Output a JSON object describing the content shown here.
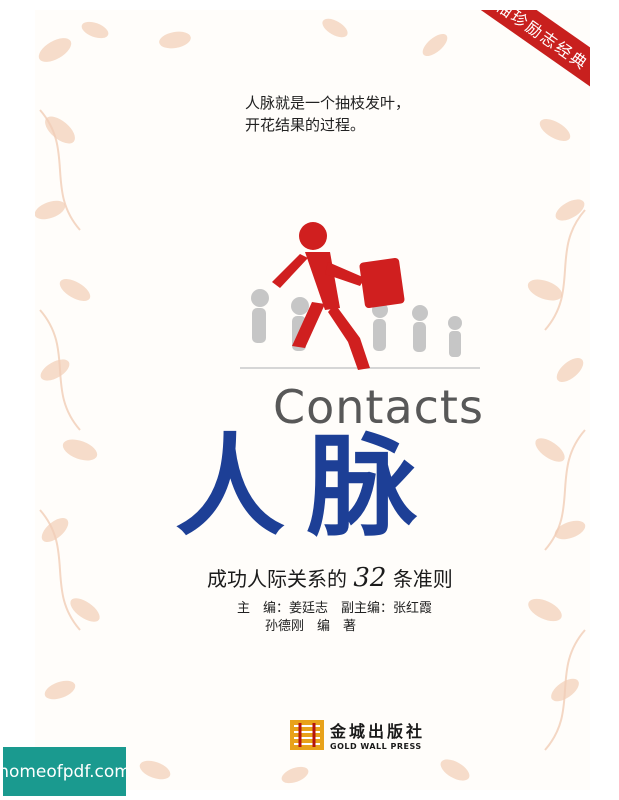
{
  "cover": {
    "ribbon_text": "袖珍励志经典",
    "slogan": [
      "人脉就是一个抽枝发叶，",
      "开花结果的过程。"
    ],
    "title_en": "Contacts",
    "title_cn": "人脉",
    "subtitle_prefix": "成功人际关系的",
    "subtitle_number": "32",
    "subtitle_suffix": "条准则",
    "editors": {
      "line1": "主　编：姜廷志　副主编：张红霞",
      "line2": "孙德刚　编　著"
    },
    "publisher": {
      "name_cn": "金城出版社",
      "name_en": "GOLD WALL PRESS"
    }
  },
  "watermark": {
    "text": "homeofpdf.com"
  },
  "colors": {
    "title_blue": "#1d3f96",
    "accent_red": "#c8201e",
    "petal_peach": "#f5d9c4",
    "watermark_teal": "#1a9a8f"
  },
  "icons": [
    "petal-pattern",
    "red-running-figure-with-briefcase",
    "gold-wall-press-logo"
  ]
}
